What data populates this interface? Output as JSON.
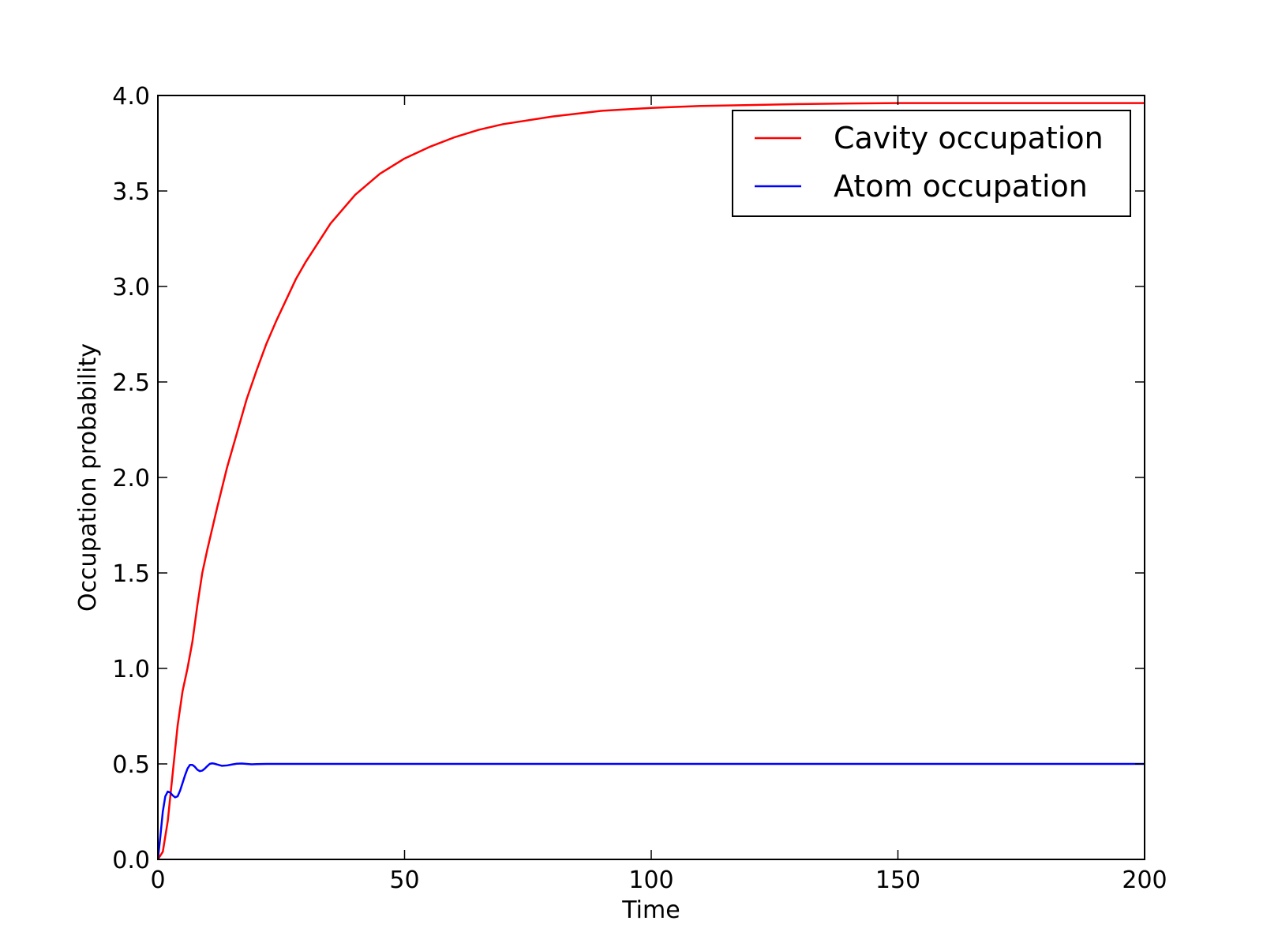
{
  "chart_data": {
    "type": "line",
    "title": "",
    "xlabel": "Time",
    "ylabel": "Occupation probability",
    "xlim": [
      0,
      200
    ],
    "ylim": [
      0.0,
      4.0
    ],
    "x_ticks": [
      0,
      50,
      100,
      150,
      200
    ],
    "x_tick_labels": [
      "0",
      "50",
      "100",
      "150",
      "200"
    ],
    "y_ticks": [
      0.0,
      0.5,
      1.0,
      1.5,
      2.0,
      2.5,
      3.0,
      3.5,
      4.0
    ],
    "y_tick_labels": [
      "0.0",
      "0.5",
      "1.0",
      "1.5",
      "2.0",
      "2.5",
      "3.0",
      "3.5",
      "4.0"
    ],
    "grid": false,
    "legend": {
      "position": "top-right"
    },
    "series": [
      {
        "name": "Cavity occupation",
        "color": "#ff0000",
        "x": [
          0,
          1,
          2,
          3,
          4,
          5,
          6,
          7,
          8,
          9,
          10,
          12,
          14,
          16,
          18,
          20,
          22,
          24,
          26,
          28,
          30,
          35,
          40,
          45,
          50,
          55,
          60,
          65,
          70,
          80,
          90,
          100,
          110,
          120,
          130,
          140,
          150,
          160,
          170,
          180,
          190,
          200
        ],
        "y": [
          0.0,
          0.04,
          0.2,
          0.45,
          0.7,
          0.88,
          1.0,
          1.14,
          1.33,
          1.5,
          1.62,
          1.84,
          2.05,
          2.23,
          2.41,
          2.56,
          2.7,
          2.82,
          2.93,
          3.04,
          3.13,
          3.33,
          3.48,
          3.59,
          3.67,
          3.73,
          3.78,
          3.82,
          3.85,
          3.89,
          3.92,
          3.935,
          3.945,
          3.95,
          3.955,
          3.958,
          3.96,
          3.96,
          3.96,
          3.96,
          3.96,
          3.96
        ]
      },
      {
        "name": "Atom occupation",
        "color": "#0000ff",
        "x": [
          0,
          0.5,
          1,
          1.5,
          2,
          2.5,
          3,
          3.5,
          4,
          4.5,
          5,
          5.5,
          6,
          6.5,
          7,
          7.5,
          8,
          8.5,
          9,
          9.5,
          10,
          10.5,
          11,
          11.5,
          12,
          13,
          14,
          15,
          16,
          17,
          18,
          19,
          20,
          22,
          24,
          26,
          28,
          30,
          40,
          50,
          60,
          80,
          100,
          120,
          140,
          160,
          180,
          200
        ],
        "y": [
          0.0,
          0.12,
          0.25,
          0.33,
          0.355,
          0.35,
          0.335,
          0.325,
          0.33,
          0.36,
          0.4,
          0.44,
          0.475,
          0.495,
          0.495,
          0.485,
          0.47,
          0.462,
          0.465,
          0.475,
          0.488,
          0.5,
          0.503,
          0.501,
          0.497,
          0.49,
          0.492,
          0.497,
          0.501,
          0.502,
          0.5,
          0.498,
          0.499,
          0.5,
          0.5,
          0.5,
          0.5,
          0.5,
          0.5,
          0.5,
          0.5,
          0.5,
          0.5,
          0.5,
          0.5,
          0.5,
          0.5,
          0.5
        ]
      }
    ]
  }
}
